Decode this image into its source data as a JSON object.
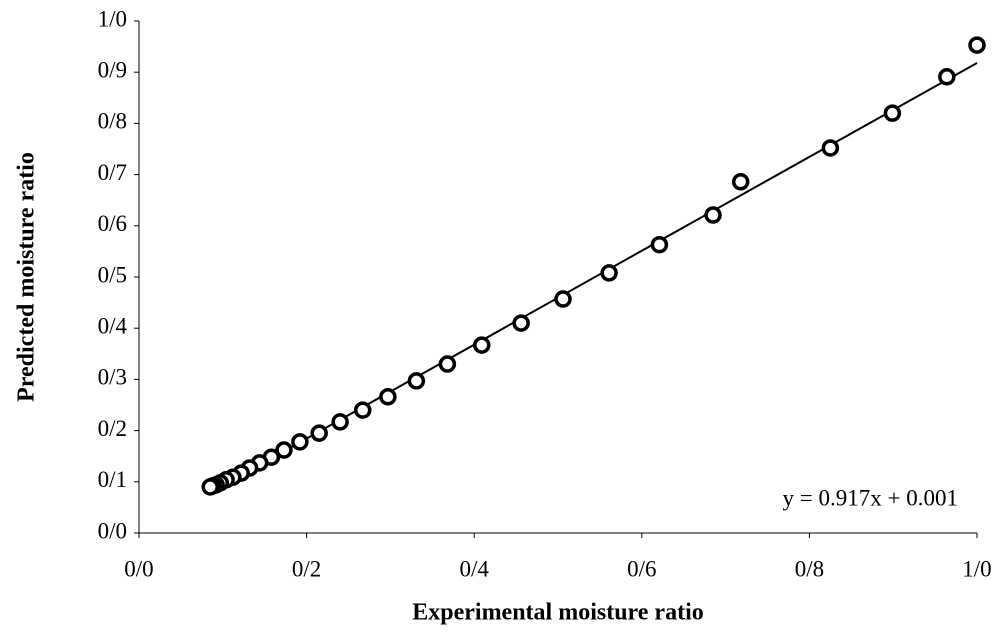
{
  "chart_data": {
    "type": "scatter",
    "xlabel": "Experimental moisture ratio",
    "ylabel": "Predicted moisture ratio",
    "annotation": "y = 0.917x + 0.001",
    "color": "#000000",
    "x": [
      1.0,
      0.964,
      0.899,
      0.825,
      0.718,
      0.685,
      0.621,
      0.561,
      0.506,
      0.456,
      0.409,
      0.368,
      0.331,
      0.297,
      0.267,
      0.24,
      0.215,
      0.192,
      0.173,
      0.158,
      0.144,
      0.132,
      0.122,
      0.112,
      0.104,
      0.097,
      0.092,
      0.088,
      0.085
    ],
    "values": [
      0.953,
      0.891,
      0.82,
      0.752,
      0.686,
      0.621,
      0.563,
      0.508,
      0.457,
      0.41,
      0.367,
      0.33,
      0.297,
      0.266,
      0.24,
      0.217,
      0.195,
      0.178,
      0.162,
      0.148,
      0.137,
      0.127,
      0.117,
      0.109,
      0.104,
      0.098,
      0.094,
      0.092,
      0.09
    ],
    "trendline": {
      "x": [
        0.085,
        1.0
      ],
      "y": [
        0.079,
        0.918
      ]
    },
    "xlim": [
      0,
      1
    ],
    "ylim": [
      0,
      1
    ],
    "xticks": [
      {
        "value": 0,
        "label": "0/0"
      },
      {
        "value": 0.2,
        "label": "0/2"
      },
      {
        "value": 0.4,
        "label": "0/4"
      },
      {
        "value": 0.6,
        "label": "0/6"
      },
      {
        "value": 0.8,
        "label": "0/8"
      },
      {
        "value": 1,
        "label": "1/0"
      }
    ],
    "yticks": [
      {
        "value": 0,
        "label": "0/0"
      },
      {
        "value": 0.1,
        "label": "0/1"
      },
      {
        "value": 0.2,
        "label": "0/2"
      },
      {
        "value": 0.3,
        "label": "0/3"
      },
      {
        "value": 0.4,
        "label": "0/4"
      },
      {
        "value": 0.5,
        "label": "0/5"
      },
      {
        "value": 0.6,
        "label": "0/6"
      },
      {
        "value": 0.7,
        "label": "0/7"
      },
      {
        "value": 0.8,
        "label": "0/8"
      },
      {
        "value": 0.9,
        "label": "0/9"
      },
      {
        "value": 1,
        "label": "1/0"
      }
    ],
    "grid": false
  }
}
